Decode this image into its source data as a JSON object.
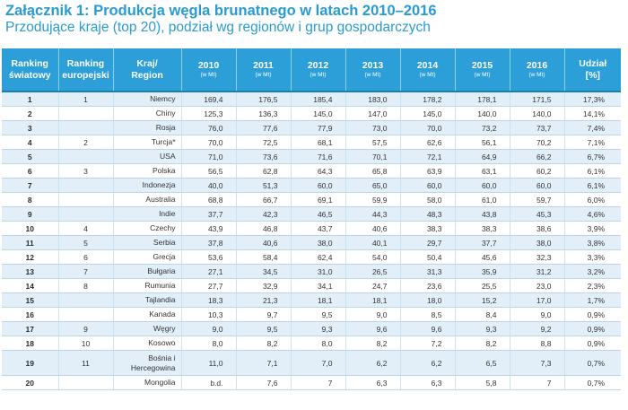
{
  "title": "Załącznik 1: Produkcja węgla brunatnego w latach 2010–2016",
  "subtitle": "Przodujące kraje (top 20), podział wg regionów i grup gospodarczych",
  "headers": {
    "ranking_world": [
      "Ranking",
      "światowy"
    ],
    "ranking_europe": [
      "Ranking",
      "europejski"
    ],
    "country": [
      "Kraj/",
      "Region"
    ],
    "years": [
      "2010",
      "2011",
      "2012",
      "2013",
      "2014",
      "2015",
      "2016"
    ],
    "unit": "(w Mt)",
    "share": [
      "Udział",
      "[%]"
    ]
  },
  "rows": [
    {
      "rank": "1",
      "euro": "1",
      "country": "Niemcy",
      "values": [
        "169,4",
        "176,5",
        "185,4",
        "183,0",
        "178,2",
        "178,1",
        "171,5"
      ],
      "share": "17,3%"
    },
    {
      "rank": "2",
      "euro": "",
      "country": "Chiny",
      "values": [
        "125,3",
        "136,3",
        "145,0",
        "147,0",
        "145,0",
        "140,0",
        "140,0"
      ],
      "share": "14,1%"
    },
    {
      "rank": "3",
      "euro": "",
      "country": "Rosja",
      "values": [
        "76,0",
        "77,6",
        "77,9",
        "73,0",
        "70,0",
        "73,2",
        "73,7"
      ],
      "share": "7,4%"
    },
    {
      "rank": "4",
      "euro": "2",
      "country": "Turcja*",
      "values": [
        "70,0",
        "72,5",
        "68,1",
        "57,5",
        "62,6",
        "56,1",
        "70,2"
      ],
      "share": "7,1%"
    },
    {
      "rank": "5",
      "euro": "",
      "country": "USA",
      "values": [
        "71,0",
        "73,6",
        "71,6",
        "70,1",
        "72,1",
        "64,9",
        "66,2"
      ],
      "share": "6,7%"
    },
    {
      "rank": "6",
      "euro": "3",
      "country": "Polska",
      "values": [
        "56,5",
        "62,8",
        "64,3",
        "65,8",
        "63,9",
        "63,1",
        "60,2"
      ],
      "share": "6,1%"
    },
    {
      "rank": "7",
      "euro": "",
      "country": "Indonezja",
      "values": [
        "40,0",
        "51,3",
        "60,0",
        "65,0",
        "60,0",
        "60,0",
        "60,0"
      ],
      "share": "6,1%"
    },
    {
      "rank": "8",
      "euro": "",
      "country": "Australia",
      "values": [
        "68,8",
        "66,7",
        "69,1",
        "59,9",
        "58,0",
        "61,0",
        "59,7"
      ],
      "share": "6,0%"
    },
    {
      "rank": "9",
      "euro": "",
      "country": "Indie",
      "values": [
        "37,7",
        "42,3",
        "46,5",
        "44,3",
        "48,3",
        "43,8",
        "45,3"
      ],
      "share": "4,6%"
    },
    {
      "rank": "10",
      "euro": "4",
      "country": "Czechy",
      "values": [
        "43,9",
        "46,8",
        "43,7",
        "40,6",
        "38,3",
        "38,3",
        "38,6"
      ],
      "share": "3,9%"
    },
    {
      "rank": "11",
      "euro": "5",
      "country": "Serbia",
      "values": [
        "37,8",
        "40,6",
        "38,0",
        "40,1",
        "29,7",
        "37,7",
        "38,0"
      ],
      "share": "3,8%"
    },
    {
      "rank": "12",
      "euro": "6",
      "country": "Grecja",
      "values": [
        "53,6",
        "58,4",
        "62,4",
        "54,0",
        "50,4",
        "45,6",
        "32,3"
      ],
      "share": "3,3%"
    },
    {
      "rank": "13",
      "euro": "7",
      "country": "Bułgaria",
      "values": [
        "27,1",
        "34,5",
        "31,0",
        "26,5",
        "31,3",
        "35,9",
        "31,2"
      ],
      "share": "3,2%"
    },
    {
      "rank": "14",
      "euro": "8",
      "country": "Rumunia",
      "values": [
        "27,7",
        "32,9",
        "34,1",
        "24,7",
        "23,6",
        "25,5",
        "23,0"
      ],
      "share": "2,3%"
    },
    {
      "rank": "15",
      "euro": "",
      "country": "Tajlandia",
      "values": [
        "18,3",
        "21,3",
        "18,1",
        "18,1",
        "18,0",
        "15,2",
        "17,0"
      ],
      "share": "1,7%"
    },
    {
      "rank": "16",
      "euro": "",
      "country": "Kanada",
      "values": [
        "10,3",
        "9,7",
        "9,5",
        "9,0",
        "8,5",
        "8,4",
        "9,0"
      ],
      "share": "0,9%"
    },
    {
      "rank": "17",
      "euro": "9",
      "country": "Węgry",
      "values": [
        "9,0",
        "9,5",
        "9,3",
        "9,6",
        "9,6",
        "9,3",
        "9,2"
      ],
      "share": "0,9%"
    },
    {
      "rank": "18",
      "euro": "10",
      "country": "Kosowo",
      "values": [
        "8,0",
        "8,2",
        "8,0",
        "8,2",
        "7,2",
        "8,2",
        "8,8"
      ],
      "share": "0,9%"
    },
    {
      "rank": "19",
      "euro": "11",
      "country": "Bośnia i\nHercegowina",
      "values": [
        "11,0",
        "7,1",
        "7,0",
        "6,2",
        "6,2",
        "6,5",
        "7,3"
      ],
      "share": "0,7%"
    },
    {
      "rank": "20",
      "euro": "",
      "country": "Mongolia",
      "values": [
        "b.d.",
        "7,6",
        "7",
        "6,3",
        "6,3",
        "5,8",
        "7"
      ],
      "share": "0,7%"
    }
  ]
}
